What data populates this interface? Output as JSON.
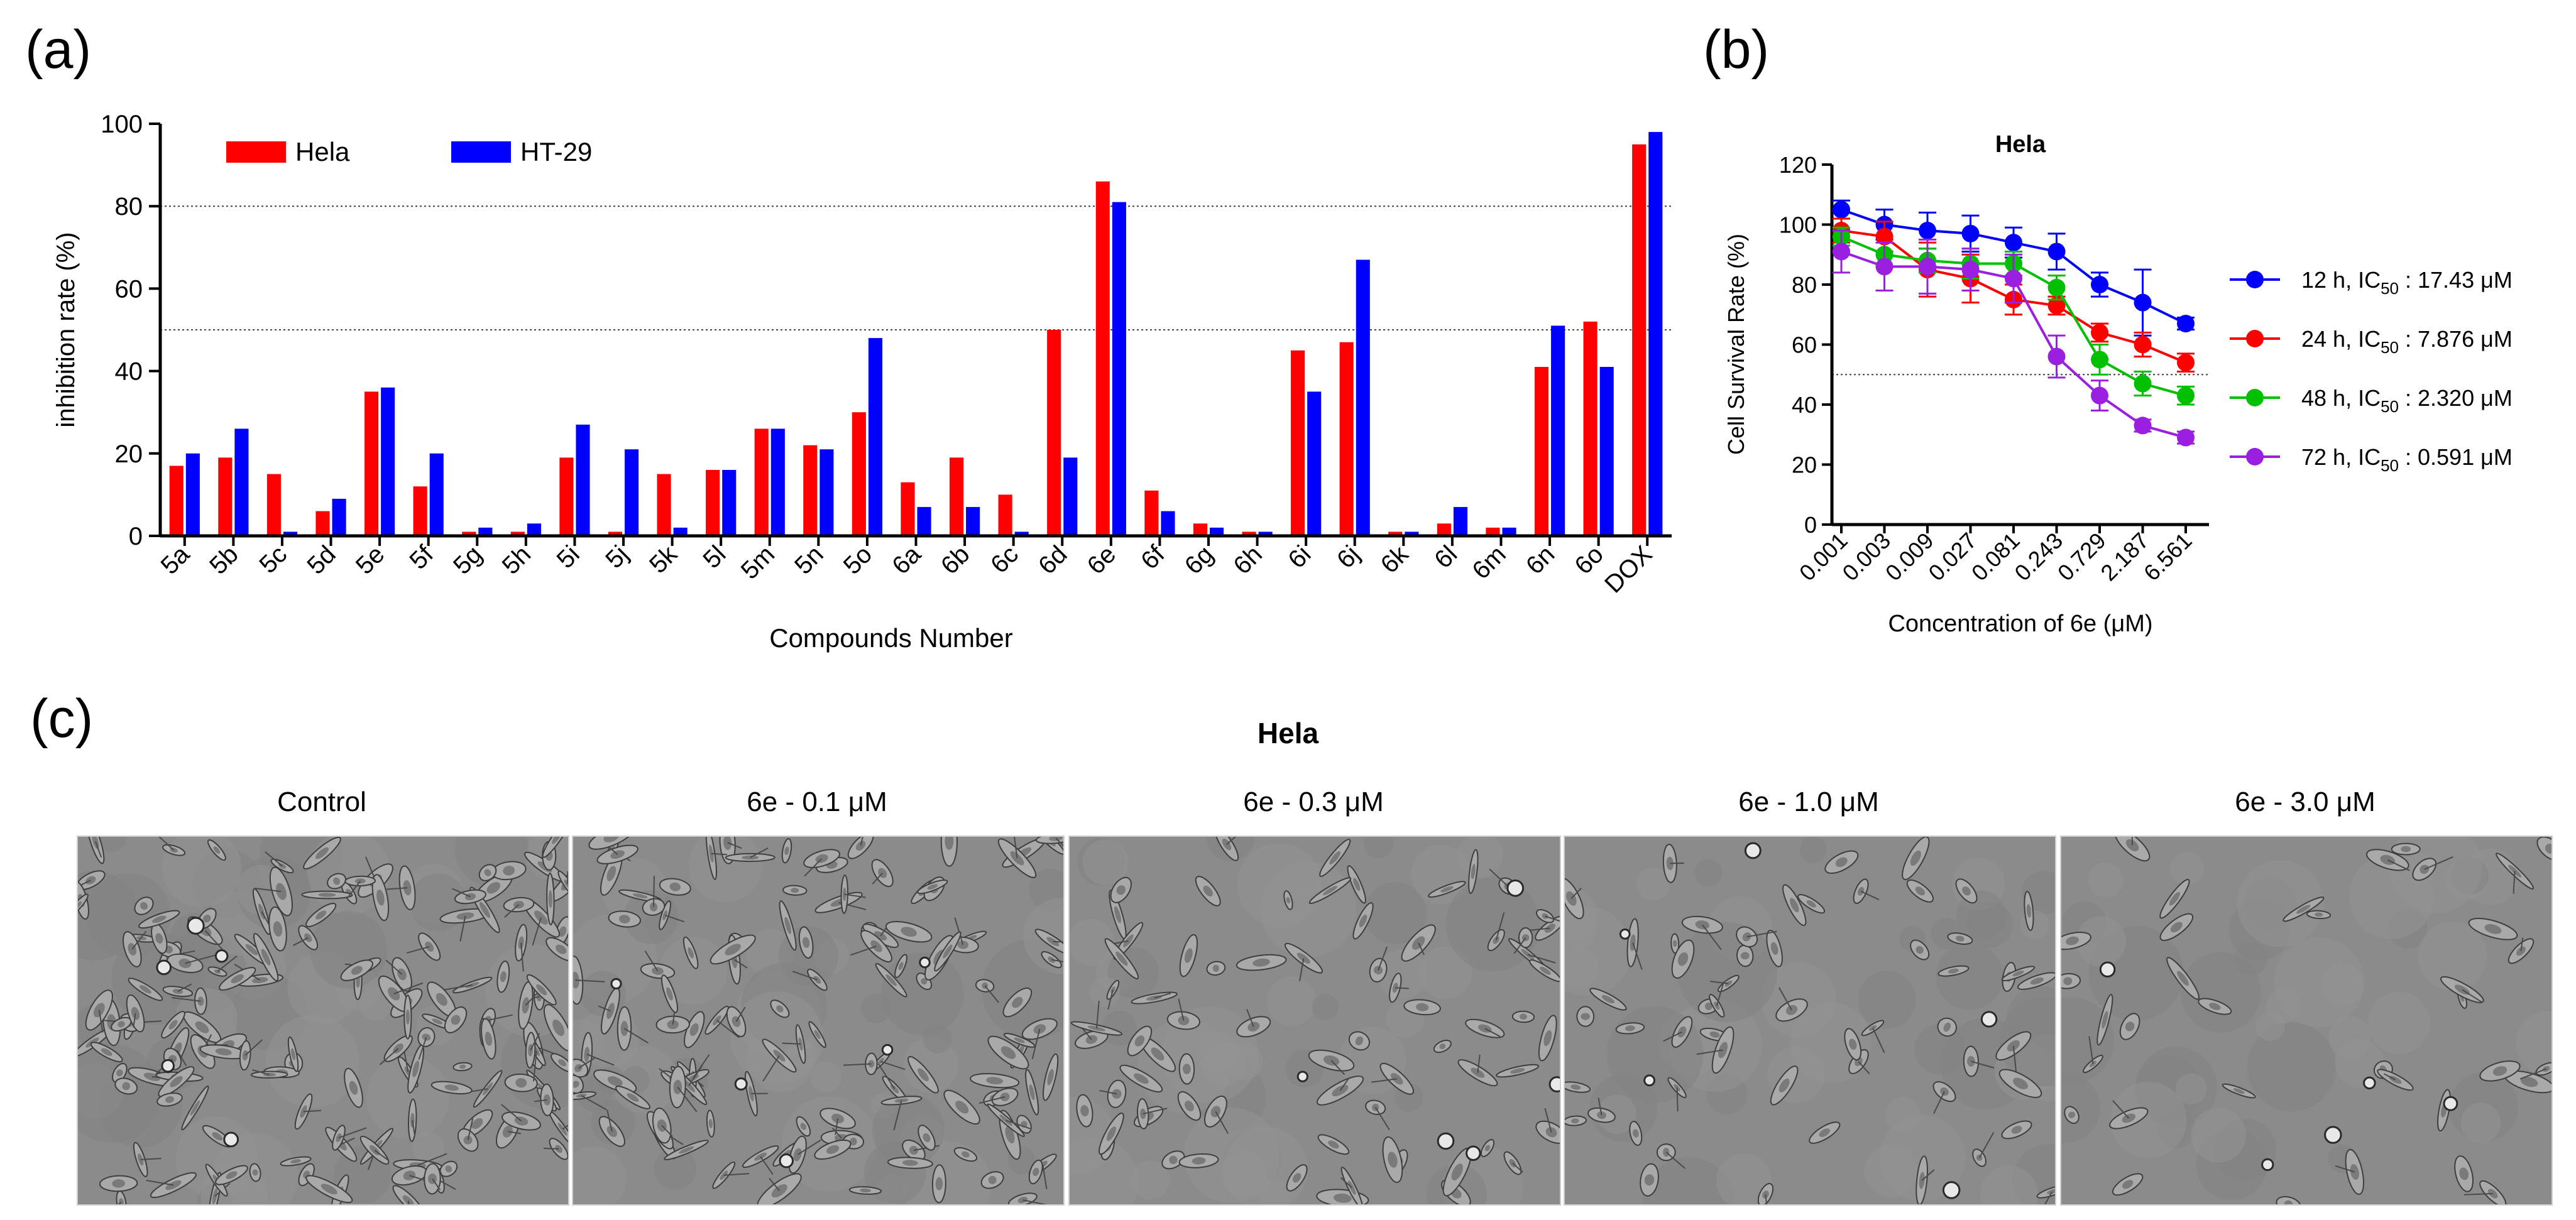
{
  "panels": {
    "a_label": "(a)",
    "b_label": "(b)",
    "c_label": "(c)"
  },
  "chart_data": [
    {
      "type": "bar",
      "title": "",
      "xlabel": "Compounds Number",
      "ylabel": "inhibition rate (%)",
      "ylim": [
        0,
        100
      ],
      "yticks": [
        "0",
        "20",
        "40",
        "60",
        "80",
        "100"
      ],
      "reference_lines": [
        50,
        80
      ],
      "legend_position": "top-left",
      "categories": [
        "5a",
        "5b",
        "5c",
        "5d",
        "5e",
        "5f",
        "5g",
        "5h",
        "5i",
        "5j",
        "5k",
        "5l",
        "5m",
        "5n",
        "5o",
        "6a",
        "6b",
        "6c",
        "6d",
        "6e",
        "6f",
        "6g",
        "6h",
        "6i",
        "6j",
        "6k",
        "6l",
        "6m",
        "6n",
        "6o",
        "DOX"
      ],
      "series": [
        {
          "name": "Hela",
          "color": "#ff0000",
          "values": [
            17,
            19,
            15,
            6,
            35,
            12,
            1,
            1,
            19,
            1,
            15,
            16,
            26,
            22,
            30,
            13,
            19,
            10,
            50,
            86,
            11,
            3,
            1,
            45,
            47,
            1,
            3,
            2,
            41,
            52,
            95
          ]
        },
        {
          "name": "HT-29",
          "color": "#0000ff",
          "values": [
            20,
            26,
            1,
            9,
            36,
            20,
            2,
            3,
            27,
            21,
            2,
            16,
            26,
            21,
            48,
            7,
            7,
            1,
            19,
            81,
            6,
            2,
            1,
            35,
            67,
            1,
            7,
            2,
            51,
            41,
            98
          ]
        }
      ]
    },
    {
      "type": "line",
      "title": "Hela",
      "xlabel": "Concentration of 6e (μM)",
      "ylabel": "Cell Survival Rate  (%)",
      "ylim": [
        0,
        120
      ],
      "yticks": [
        "0",
        "20",
        "40",
        "60",
        "80",
        "100",
        "120"
      ],
      "reference_lines": [
        50
      ],
      "legend_position": "right",
      "x": [
        "0.001",
        "0.003",
        "0.009",
        "0.027",
        "0.081",
        "0.243",
        "0.729",
        "2.187",
        "6.561"
      ],
      "series": [
        {
          "name": "12 h,",
          "ic50": "17.43 μM",
          "color": "#0000ff",
          "values": [
            105,
            100,
            98,
            97,
            94,
            91,
            80,
            74,
            67
          ],
          "errors": [
            3,
            5,
            6,
            6,
            5,
            6,
            4,
            11,
            2
          ]
        },
        {
          "name": "24 h,",
          "ic50": "7.876 μM",
          "color": "#ff0000",
          "values": [
            98,
            96,
            85,
            82,
            75,
            73,
            64,
            60,
            54
          ],
          "errors": [
            4,
            5,
            9,
            8,
            5,
            3,
            3,
            4,
            3
          ]
        },
        {
          "name": "48 h,",
          "ic50": "2.320 μM",
          "color": "#00c000",
          "values": [
            96,
            90,
            88,
            87,
            87,
            79,
            55,
            47,
            43
          ],
          "errors": [
            3,
            4,
            4,
            5,
            4,
            4,
            5,
            4,
            3
          ]
        },
        {
          "name": "72 h,",
          "ic50": "0.591 μM",
          "color": "#9b1fe0",
          "values": [
            91,
            86,
            86,
            85,
            82,
            56,
            43,
            33,
            29
          ],
          "errors": [
            7,
            8,
            9,
            7,
            8,
            7,
            5,
            2,
            2
          ]
        }
      ],
      "ic_prefix": "IC",
      "ic_sub": "50"
    }
  ],
  "micrographs": {
    "title": "Hela",
    "captions": [
      "Control",
      "6e - 0.1 μM",
      "6e - 0.3 μM",
      "6e - 1.0 μM",
      "6e - 3.0 μM"
    ]
  }
}
